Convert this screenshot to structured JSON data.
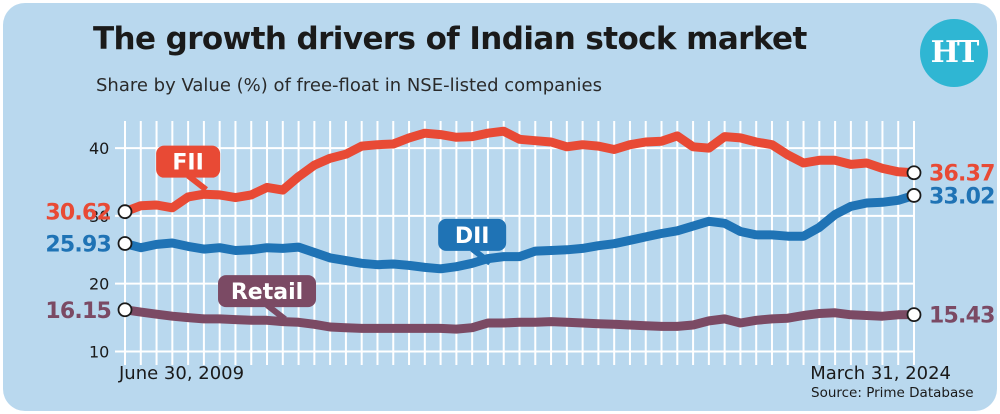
{
  "header": {
    "title": "The growth drivers of Indian stock market",
    "subtitle": "Share by Value (%) of free-float in NSE-listed companies",
    "source": "Source: Prime Database",
    "logo_text": "HT"
  },
  "colors": {
    "background": "#b9d8ee",
    "fii": "#e84a35",
    "dii": "#1f73b5",
    "retail": "#7b4a64",
    "grid": "#ffffff"
  },
  "chart_data": {
    "type": "line",
    "title": "The growth drivers of Indian stock market",
    "subtitle": "Share by Value (%) of free-float in NSE-listed companies",
    "xlabel": "",
    "ylabel": "",
    "x_start_label": "June 30, 2009",
    "x_end_label": "March 31, 2024",
    "y_ticks": [
      10,
      20,
      30,
      40
    ],
    "ylim": [
      8,
      44
    ],
    "grid": true,
    "series": [
      {
        "name": "FII",
        "start_label": "30.62",
        "end_label": "36.37",
        "values": [
          30.62,
          31.5,
          31.6,
          31.2,
          32.8,
          33.2,
          33.1,
          32.7,
          33.1,
          34.2,
          33.8,
          35.8,
          37.5,
          38.5,
          39.1,
          40.3,
          40.5,
          40.6,
          41.5,
          42.2,
          42.0,
          41.6,
          41.7,
          42.2,
          42.5,
          41.3,
          41.1,
          40.9,
          40.2,
          40.5,
          40.3,
          39.8,
          40.5,
          40.9,
          41.0,
          41.8,
          40.2,
          40.0,
          41.7,
          41.5,
          40.9,
          40.5,
          39.0,
          37.8,
          38.2,
          38.2,
          37.6,
          37.8,
          37.0,
          36.5,
          36.37
        ]
      },
      {
        "name": "DII",
        "start_label": "25.93",
        "end_label": "33.02",
        "values": [
          25.93,
          25.3,
          25.8,
          26.0,
          25.5,
          25.1,
          25.3,
          24.9,
          25.0,
          25.3,
          25.2,
          25.4,
          24.6,
          23.8,
          23.4,
          23.0,
          22.8,
          22.9,
          22.7,
          22.4,
          22.2,
          22.5,
          23.0,
          23.7,
          24.0,
          24.0,
          24.8,
          24.9,
          25.0,
          25.2,
          25.6,
          25.9,
          26.4,
          26.9,
          27.4,
          27.8,
          28.5,
          29.2,
          28.9,
          27.7,
          27.2,
          27.2,
          27.0,
          27.0,
          28.3,
          30.2,
          31.4,
          31.9,
          32.0,
          32.3,
          33.02
        ]
      },
      {
        "name": "Retail",
        "start_label": "16.15",
        "end_label": "15.43",
        "values": [
          16.15,
          15.8,
          15.5,
          15.2,
          15.0,
          14.8,
          14.8,
          14.7,
          14.6,
          14.6,
          14.4,
          14.3,
          14.0,
          13.6,
          13.5,
          13.4,
          13.4,
          13.4,
          13.4,
          13.4,
          13.4,
          13.3,
          13.5,
          14.2,
          14.2,
          14.3,
          14.3,
          14.4,
          14.3,
          14.2,
          14.1,
          14.0,
          13.9,
          13.8,
          13.7,
          13.7,
          13.9,
          14.5,
          14.8,
          14.2,
          14.6,
          14.8,
          14.9,
          15.3,
          15.6,
          15.7,
          15.4,
          15.3,
          15.2,
          15.4,
          15.43
        ]
      }
    ]
  }
}
